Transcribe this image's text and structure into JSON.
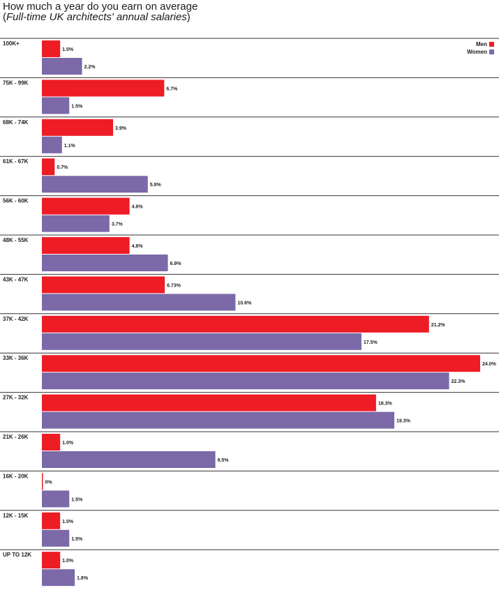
{
  "chart_data": {
    "type": "bar",
    "orientation": "horizontal",
    "title": "How much a year do you earn on average",
    "subtitle_prefix": "(",
    "subtitle_italic": "Full-time UK architects' annual salaries",
    "subtitle_suffix": ")",
    "xlim": [
      0,
      24.0
    ],
    "grid": false,
    "legend_position": "top-right",
    "categories": [
      "100K+",
      "75K - 99K",
      "68K - 74K",
      "61K - 67K",
      "56K - 60K",
      "48K - 55K",
      "43K - 47K",
      "37K - 42K",
      "33K - 36K",
      "27K - 32K",
      "21K - 26K",
      "16K - 20K",
      "12K - 15K",
      "UP TO 12K"
    ],
    "series": [
      {
        "name": "Men",
        "color": "#ee1c25",
        "values": [
          1.0,
          6.7,
          3.9,
          0.7,
          4.8,
          4.8,
          6.73,
          21.2,
          24.0,
          18.3,
          1.0,
          0,
          1.0,
          1.0
        ],
        "labels": [
          "1.0%",
          "6.7%",
          "3.9%",
          "0.7%",
          "4.8%",
          "4.8%",
          "6.73%",
          "21.2%",
          "24.0%",
          "18.3%",
          "1.0%",
          "0%",
          "1.0%",
          "1.0%"
        ]
      },
      {
        "name": "Women",
        "color": "#7b69a8",
        "values": [
          2.2,
          1.5,
          1.1,
          5.8,
          3.7,
          6.9,
          10.6,
          17.5,
          22.3,
          19.3,
          9.5,
          1.5,
          1.5,
          1.8
        ],
        "labels": [
          "2.2%",
          "1.5%",
          "1.1%",
          "5.8%",
          "3.7%",
          "6.9%",
          "10.6%",
          "17.5%",
          "22.3%",
          "19.3%",
          "9.5%",
          "1.5%",
          "1.5%",
          "1.8%"
        ]
      }
    ]
  },
  "legend": {
    "men_label": "Men",
    "women_label": "Women"
  }
}
